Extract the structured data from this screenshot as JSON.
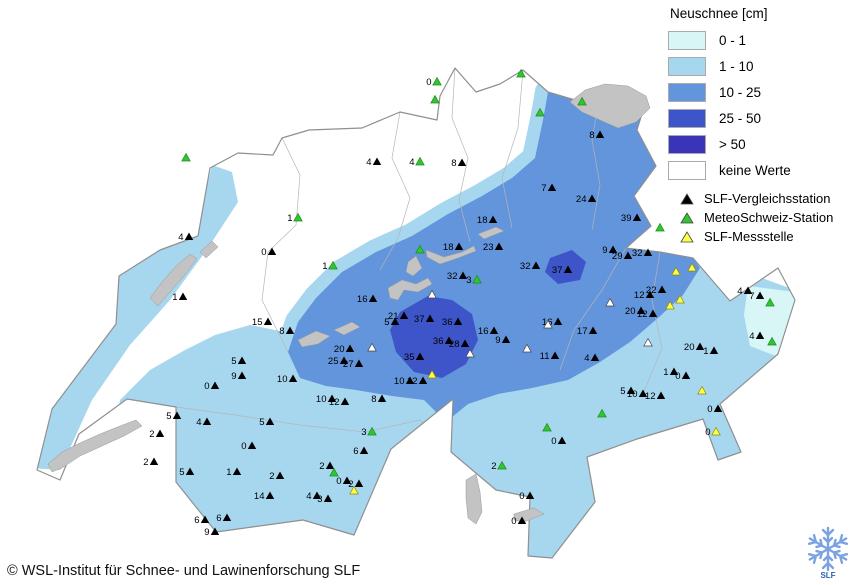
{
  "legend": {
    "title": "Neuschnee [cm]",
    "classes": [
      {
        "label": "0 - 1",
        "color": "#d9f6f6"
      },
      {
        "label": "1 - 10",
        "color": "#a7d7ef"
      },
      {
        "label": "10 - 25",
        "color": "#6295db"
      },
      {
        "label": "25 - 50",
        "color": "#3d55c8"
      },
      {
        "label": "> 50",
        "color": "#3a35b8"
      },
      {
        "label": "keine Werte",
        "color": "#ffffff"
      }
    ],
    "station_types": [
      {
        "label": "SLF-Vergleichsstation",
        "color": "#000000",
        "code": "b"
      },
      {
        "label": "MeteoSchweiz-Station",
        "color": "#2fc62f",
        "code": "g"
      },
      {
        "label": "SLF-Messstelle",
        "color": "#ffff4a",
        "code": "y"
      }
    ]
  },
  "footer": {
    "copyright": "© WSL-Institut für Schnee- und Lawinenforschung SLF"
  },
  "logo": {
    "label": "SLF"
  },
  "map": {
    "colors": {
      "c0": "#d9f6f6",
      "c1": "#a7d7ef",
      "c2": "#6295db",
      "c3": "#3d55c8",
      "c4": "#3a35b8",
      "lake": "#c3c3c3",
      "border": "#8f8f8f"
    },
    "stations": [
      [
        437,
        82,
        "0",
        "g"
      ],
      [
        521,
        74,
        "",
        "g"
      ],
      [
        582,
        102,
        "",
        "g"
      ],
      [
        540,
        113,
        "",
        "g"
      ],
      [
        435,
        100,
        "",
        "g"
      ],
      [
        600,
        135,
        "8",
        "b"
      ],
      [
        462,
        163,
        "8",
        "b"
      ],
      [
        377,
        162,
        "4",
        "b"
      ],
      [
        420,
        162,
        "4",
        "g"
      ],
      [
        552,
        188,
        "7",
        "b"
      ],
      [
        592,
        199,
        "24",
        "b"
      ],
      [
        493,
        220,
        "18",
        "b"
      ],
      [
        459,
        247,
        "18",
        "b"
      ],
      [
        499,
        247,
        "23",
        "b"
      ],
      [
        420,
        250,
        "",
        "g"
      ],
      [
        186,
        158,
        "",
        "g"
      ],
      [
        189,
        237,
        "4",
        "b"
      ],
      [
        298,
        218,
        "1",
        "g"
      ],
      [
        272,
        252,
        "0",
        "b"
      ],
      [
        333,
        266,
        "1",
        "g"
      ],
      [
        183,
        297,
        "1",
        "b"
      ],
      [
        536,
        266,
        "32",
        "b"
      ],
      [
        568,
        270,
        "37",
        "b"
      ],
      [
        637,
        218,
        "39",
        "b"
      ],
      [
        660,
        228,
        "",
        "g"
      ],
      [
        613,
        250,
        "9",
        "b"
      ],
      [
        628,
        256,
        "29",
        "b"
      ],
      [
        648,
        253,
        "32",
        "b"
      ],
      [
        676,
        272,
        "",
        "y"
      ],
      [
        692,
        268,
        "",
        "y"
      ],
      [
        662,
        290,
        "22",
        "b"
      ],
      [
        650,
        295,
        "12",
        "b"
      ],
      [
        680,
        300,
        "",
        "y"
      ],
      [
        748,
        291,
        "4",
        "b"
      ],
      [
        760,
        296,
        "7",
        "b"
      ],
      [
        770,
        303,
        "",
        "g"
      ],
      [
        760,
        336,
        "4",
        "b"
      ],
      [
        772,
        342,
        "",
        "g"
      ],
      [
        463,
        276,
        "32",
        "b"
      ],
      [
        477,
        280,
        "3",
        "g"
      ],
      [
        373,
        299,
        "16",
        "b"
      ],
      [
        395,
        322,
        "5",
        "b"
      ],
      [
        404,
        316,
        "21",
        "b"
      ],
      [
        430,
        319,
        "37",
        "b"
      ],
      [
        458,
        322,
        "36",
        "b"
      ],
      [
        449,
        341,
        "36",
        "b"
      ],
      [
        465,
        344,
        "28",
        "b"
      ],
      [
        494,
        331,
        "16",
        "b"
      ],
      [
        506,
        340,
        "9",
        "b"
      ],
      [
        558,
        322,
        "16",
        "b"
      ],
      [
        548,
        325,
        "",
        "o"
      ],
      [
        593,
        331,
        "17",
        "b"
      ],
      [
        555,
        356,
        "11",
        "b"
      ],
      [
        595,
        358,
        "4",
        "b"
      ],
      [
        641,
        311,
        "20",
        "b"
      ],
      [
        653,
        314,
        "12",
        "b"
      ],
      [
        670,
        306,
        "",
        "y"
      ],
      [
        700,
        347,
        "20",
        "b"
      ],
      [
        714,
        351,
        "1",
        "b"
      ],
      [
        268,
        322,
        "15",
        "b"
      ],
      [
        290,
        331,
        "8",
        "b"
      ],
      [
        350,
        349,
        "20",
        "b"
      ],
      [
        344,
        361,
        "25",
        "b"
      ],
      [
        359,
        364,
        "27",
        "b"
      ],
      [
        372,
        348,
        "",
        "o"
      ],
      [
        420,
        357,
        "35",
        "b"
      ],
      [
        410,
        381,
        "10",
        "b"
      ],
      [
        423,
        381,
        "12",
        "b"
      ],
      [
        432,
        375,
        "",
        "y"
      ],
      [
        293,
        379,
        "10",
        "b"
      ],
      [
        242,
        361,
        "5",
        "b"
      ],
      [
        242,
        376,
        "9",
        "b"
      ],
      [
        215,
        386,
        "0",
        "b"
      ],
      [
        332,
        399,
        "10",
        "b"
      ],
      [
        345,
        402,
        "12",
        "b"
      ],
      [
        382,
        399,
        "8",
        "b"
      ],
      [
        177,
        416,
        "5",
        "b"
      ],
      [
        207,
        422,
        "4",
        "b"
      ],
      [
        270,
        422,
        "5",
        "b"
      ],
      [
        252,
        446,
        "0",
        "b"
      ],
      [
        160,
        434,
        "2",
        "b"
      ],
      [
        154,
        462,
        "2",
        "b"
      ],
      [
        190,
        472,
        "5",
        "b"
      ],
      [
        237,
        472,
        "1",
        "b"
      ],
      [
        280,
        476,
        "2",
        "b"
      ],
      [
        330,
        466,
        "2",
        "b"
      ],
      [
        334,
        473,
        "",
        "g"
      ],
      [
        364,
        451,
        "6",
        "b"
      ],
      [
        347,
        481,
        "0",
        "b"
      ],
      [
        359,
        484,
        "2",
        "b"
      ],
      [
        354,
        491,
        "",
        "y"
      ],
      [
        270,
        496,
        "14",
        "b"
      ],
      [
        317,
        496,
        "4",
        "b"
      ],
      [
        328,
        499,
        "3",
        "b"
      ],
      [
        205,
        520,
        "6",
        "b"
      ],
      [
        227,
        518,
        "6",
        "b"
      ],
      [
        215,
        532,
        "9",
        "b"
      ],
      [
        372,
        432,
        "3",
        "g"
      ],
      [
        502,
        466,
        "2",
        "g"
      ],
      [
        562,
        441,
        "0",
        "b"
      ],
      [
        547,
        428,
        "",
        "g"
      ],
      [
        530,
        496,
        "0",
        "b"
      ],
      [
        522,
        521,
        "0",
        "b"
      ],
      [
        631,
        391,
        "5",
        "b"
      ],
      [
        643,
        394,
        "10",
        "b"
      ],
      [
        661,
        396,
        "12",
        "b"
      ],
      [
        674,
        372,
        "1",
        "b"
      ],
      [
        686,
        376,
        "0",
        "b"
      ],
      [
        702,
        391,
        "",
        "y"
      ],
      [
        718,
        409,
        "0",
        "b"
      ],
      [
        716,
        432,
        "0",
        "y"
      ],
      [
        602,
        414,
        "",
        "g"
      ],
      [
        470,
        354,
        "",
        "o"
      ],
      [
        610,
        303,
        "",
        "o"
      ],
      [
        432,
        295,
        "",
        "o"
      ],
      [
        527,
        349,
        "",
        "o"
      ],
      [
        648,
        343,
        "",
        "o"
      ]
    ]
  }
}
